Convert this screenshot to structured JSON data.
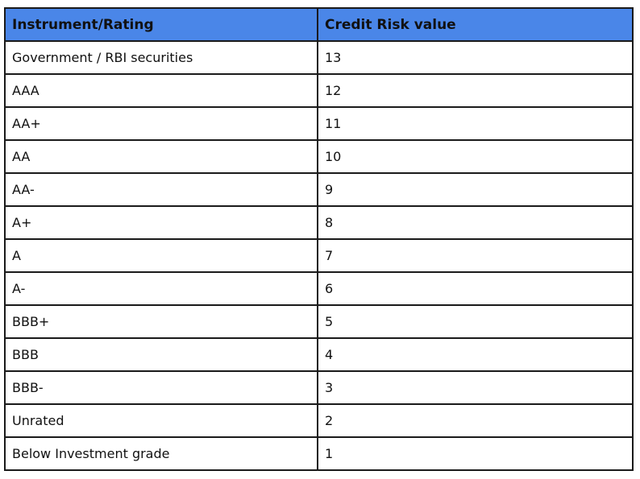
{
  "table": {
    "header_fill": "#4a86e8",
    "columns": [
      "Instrument/Rating",
      "Credit Risk value"
    ],
    "rows": [
      [
        "Government / RBI securities",
        "13"
      ],
      [
        "AAA",
        "12"
      ],
      [
        "AA+",
        "11"
      ],
      [
        "AA",
        "10"
      ],
      [
        "AA-",
        "9"
      ],
      [
        "A+",
        "8"
      ],
      [
        "A",
        "7"
      ],
      [
        "A-",
        "6"
      ],
      [
        "BBB+",
        "5"
      ],
      [
        "BBB",
        "4"
      ],
      [
        "BBB-",
        "3"
      ],
      [
        "Unrated",
        "2"
      ],
      [
        "Below Investment grade",
        "1"
      ]
    ]
  }
}
